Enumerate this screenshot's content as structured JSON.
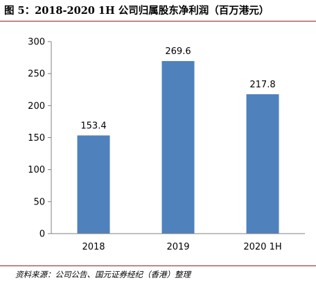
{
  "figure": {
    "title": "图 5：2018-2020 1H 公司归属股东净利润（百万港元）",
    "source": "资料来源：公司公告、国元证券经纪（香港）整理"
  },
  "colors": {
    "bar": "#4f81bd",
    "accent_rule": "#9b1c1c",
    "axis": "#808080"
  },
  "chart_data": {
    "type": "bar",
    "title": "2018-2020 1H 公司归属股东净利润（百万港元）",
    "categories": [
      "2018",
      "2019",
      "2020  1H"
    ],
    "values": [
      153.4,
      269.6,
      217.8
    ],
    "value_labels": [
      "153.4",
      "269.6",
      "217.8"
    ],
    "ylim": [
      0,
      300
    ],
    "yticks": [
      0,
      50,
      100,
      150,
      200,
      250,
      300
    ],
    "xlabel": "",
    "ylabel": "",
    "grid": false,
    "legend": "none"
  }
}
